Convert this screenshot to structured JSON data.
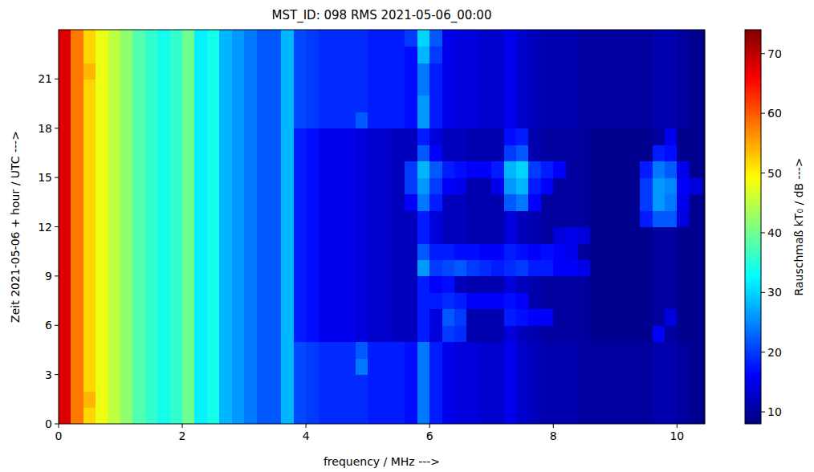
{
  "chart_data": {
    "type": "heatmap",
    "title": "MST_ID: 098 RMS 2021-05-06_00:00",
    "x_label": "frequency / MHz --->",
    "y_label": "Zeit 2021-05-06 + hour / UTC --->",
    "colorbar_label": "Rauschmaß kT₀ / dB --->",
    "xlim": [
      0,
      10.45
    ],
    "xticks": [
      0,
      2,
      4,
      6,
      8,
      10
    ],
    "ylim": [
      0,
      24
    ],
    "yticks": [
      0,
      3,
      6,
      9,
      12,
      15,
      18,
      21
    ],
    "colorbar_range": [
      8,
      74
    ],
    "colorbar_ticks": [
      10,
      20,
      30,
      40,
      50,
      60,
      70
    ],
    "x_edges": [
      0,
      0.2,
      0.4,
      0.6,
      0.8,
      1.0,
      1.2,
      1.4,
      1.6,
      1.8,
      2.0,
      2.2,
      2.4,
      2.6,
      2.8,
      3.0,
      3.2,
      3.4,
      3.6,
      3.8,
      4.0,
      4.2,
      4.4,
      4.6,
      4.8,
      5.0,
      5.2,
      5.4,
      5.6,
      5.8,
      6.0,
      6.2,
      6.4,
      6.6,
      6.8,
      7.0,
      7.2,
      7.4,
      7.6,
      7.8,
      8.0,
      8.2,
      8.4,
      8.6,
      8.8,
      9.0,
      9.2,
      9.4,
      9.6,
      9.8,
      10.0,
      10.2,
      10.4
    ],
    "y_edges": [
      0,
      1,
      2,
      3,
      4,
      5,
      6,
      7,
      8,
      9,
      10,
      11,
      12,
      13,
      14,
      15,
      16,
      17,
      18,
      19,
      20,
      21,
      22,
      23,
      24
    ],
    "cells": [
      [
        68,
        58,
        52,
        48,
        45,
        42,
        38,
        36,
        34,
        36,
        40,
        32,
        34,
        28,
        26,
        24,
        22,
        22,
        28,
        21,
        20,
        19,
        19,
        19,
        19,
        18,
        18,
        18,
        17,
        24,
        18,
        15,
        14,
        14,
        13,
        13,
        15,
        13,
        12,
        11,
        11,
        11,
        10,
        10,
        10,
        10,
        10,
        10,
        11,
        11,
        10,
        9
      ],
      [
        68,
        58,
        54,
        48,
        45,
        42,
        38,
        36,
        34,
        36,
        40,
        32,
        34,
        28,
        26,
        24,
        22,
        22,
        28,
        21,
        20,
        19,
        19,
        19,
        19,
        18,
        18,
        18,
        17,
        24,
        18,
        15,
        14,
        14,
        13,
        13,
        15,
        13,
        12,
        11,
        11,
        11,
        10,
        10,
        10,
        10,
        10,
        10,
        11,
        11,
        10,
        9
      ],
      [
        68,
        58,
        52,
        48,
        45,
        42,
        38,
        36,
        34,
        36,
        40,
        32,
        34,
        28,
        26,
        24,
        22,
        22,
        28,
        21,
        20,
        19,
        19,
        19,
        19,
        18,
        18,
        18,
        17,
        24,
        18,
        15,
        14,
        14,
        13,
        13,
        15,
        13,
        12,
        11,
        11,
        11,
        10,
        10,
        10,
        10,
        10,
        10,
        11,
        11,
        10,
        9
      ],
      [
        68,
        58,
        52,
        48,
        45,
        42,
        38,
        36,
        34,
        36,
        40,
        32,
        34,
        28,
        26,
        24,
        22,
        22,
        28,
        21,
        20,
        19,
        19,
        19,
        24,
        18,
        18,
        18,
        17,
        24,
        18,
        15,
        14,
        14,
        13,
        13,
        15,
        13,
        12,
        11,
        11,
        11,
        10,
        10,
        10,
        10,
        10,
        10,
        11,
        11,
        10,
        9
      ],
      [
        68,
        58,
        52,
        48,
        45,
        42,
        38,
        36,
        34,
        36,
        40,
        32,
        34,
        28,
        26,
        24,
        22,
        22,
        28,
        21,
        20,
        19,
        19,
        19,
        22,
        18,
        18,
        18,
        17,
        24,
        18,
        15,
        14,
        14,
        13,
        13,
        15,
        13,
        12,
        11,
        11,
        11,
        10,
        10,
        10,
        10,
        10,
        10,
        11,
        11,
        10,
        9
      ],
      [
        68,
        58,
        52,
        48,
        45,
        42,
        38,
        36,
        34,
        36,
        40,
        32,
        34,
        28,
        26,
        24,
        22,
        22,
        28,
        18,
        17,
        15,
        15,
        15,
        14,
        13,
        13,
        12,
        12,
        18,
        14,
        20,
        19,
        11,
        11,
        11,
        14,
        12,
        11,
        10,
        10,
        10,
        10,
        9,
        9,
        9,
        9,
        9,
        16,
        10,
        9,
        9
      ],
      [
        68,
        58,
        52,
        48,
        45,
        42,
        38,
        36,
        34,
        36,
        40,
        32,
        34,
        28,
        26,
        24,
        22,
        22,
        28,
        18,
        17,
        15,
        15,
        15,
        14,
        13,
        13,
        12,
        12,
        18,
        14,
        22,
        20,
        11,
        11,
        11,
        18,
        17,
        16,
        16,
        10,
        10,
        10,
        9,
        9,
        9,
        9,
        9,
        10,
        14,
        9,
        9
      ],
      [
        68,
        58,
        52,
        48,
        45,
        42,
        38,
        36,
        34,
        36,
        40,
        32,
        34,
        28,
        26,
        24,
        22,
        22,
        28,
        18,
        17,
        15,
        15,
        15,
        14,
        13,
        13,
        12,
        12,
        18,
        18,
        19,
        18,
        16,
        16,
        16,
        17,
        16,
        11,
        10,
        10,
        10,
        10,
        9,
        9,
        9,
        9,
        9,
        10,
        10,
        9,
        9
      ],
      [
        68,
        58,
        52,
        48,
        45,
        42,
        38,
        36,
        34,
        36,
        40,
        32,
        34,
        28,
        26,
        24,
        22,
        22,
        28,
        18,
        17,
        15,
        15,
        15,
        14,
        13,
        13,
        12,
        12,
        18,
        16,
        17,
        12,
        11,
        11,
        11,
        14,
        12,
        11,
        10,
        10,
        10,
        10,
        9,
        9,
        9,
        9,
        9,
        10,
        10,
        9,
        9
      ],
      [
        68,
        58,
        52,
        48,
        45,
        42,
        38,
        36,
        34,
        36,
        40,
        32,
        34,
        28,
        26,
        24,
        22,
        22,
        28,
        18,
        17,
        15,
        15,
        15,
        14,
        13,
        13,
        12,
        12,
        26,
        20,
        21,
        22,
        20,
        19,
        18,
        19,
        20,
        18,
        18,
        16,
        16,
        15,
        9,
        9,
        9,
        9,
        9,
        10,
        10,
        9,
        9
      ],
      [
        68,
        58,
        52,
        48,
        45,
        42,
        38,
        36,
        34,
        36,
        40,
        32,
        34,
        28,
        26,
        24,
        22,
        22,
        28,
        18,
        17,
        15,
        15,
        15,
        14,
        13,
        13,
        12,
        12,
        22,
        18,
        18,
        17,
        17,
        16,
        16,
        18,
        17,
        16,
        17,
        16,
        15,
        10,
        9,
        9,
        9,
        9,
        9,
        10,
        10,
        9,
        9
      ],
      [
        68,
        58,
        52,
        48,
        45,
        42,
        38,
        36,
        34,
        36,
        40,
        32,
        34,
        28,
        26,
        24,
        22,
        22,
        28,
        18,
        17,
        15,
        15,
        15,
        14,
        13,
        13,
        12,
        12,
        18,
        14,
        12,
        12,
        11,
        11,
        11,
        14,
        12,
        11,
        10,
        14,
        15,
        14,
        9,
        9,
        9,
        9,
        9,
        10,
        10,
        9,
        9
      ],
      [
        68,
        58,
        52,
        48,
        45,
        42,
        38,
        36,
        34,
        36,
        40,
        32,
        34,
        28,
        26,
        24,
        22,
        22,
        28,
        18,
        17,
        15,
        15,
        15,
        14,
        13,
        13,
        12,
        12,
        18,
        14,
        12,
        12,
        11,
        11,
        11,
        14,
        12,
        11,
        10,
        10,
        10,
        10,
        9,
        9,
        9,
        9,
        18,
        22,
        22,
        14,
        9
      ],
      [
        68,
        58,
        52,
        48,
        45,
        42,
        38,
        36,
        34,
        36,
        40,
        32,
        34,
        28,
        26,
        24,
        22,
        22,
        28,
        18,
        17,
        15,
        15,
        15,
        14,
        13,
        13,
        12,
        16,
        24,
        18,
        12,
        12,
        11,
        11,
        11,
        22,
        24,
        16,
        10,
        10,
        10,
        10,
        9,
        9,
        9,
        9,
        20,
        26,
        24,
        15,
        9
      ],
      [
        68,
        58,
        52,
        48,
        45,
        42,
        38,
        36,
        34,
        36,
        40,
        32,
        34,
        28,
        26,
        24,
        22,
        22,
        28,
        18,
        17,
        15,
        15,
        15,
        14,
        13,
        13,
        12,
        20,
        26,
        20,
        16,
        15,
        11,
        11,
        15,
        26,
        28,
        18,
        16,
        10,
        10,
        10,
        9,
        9,
        9,
        9,
        20,
        26,
        25,
        16,
        14
      ],
      [
        68,
        58,
        52,
        48,
        45,
        42,
        38,
        36,
        34,
        36,
        40,
        32,
        34,
        28,
        26,
        24,
        22,
        22,
        28,
        18,
        17,
        15,
        15,
        15,
        14,
        13,
        13,
        12,
        20,
        28,
        22,
        18,
        17,
        16,
        16,
        18,
        28,
        30,
        20,
        18,
        16,
        10,
        10,
        9,
        9,
        9,
        9,
        18,
        24,
        22,
        15,
        9
      ],
      [
        68,
        58,
        52,
        48,
        45,
        42,
        38,
        36,
        34,
        36,
        40,
        32,
        34,
        28,
        26,
        24,
        22,
        22,
        28,
        18,
        17,
        15,
        15,
        15,
        14,
        13,
        13,
        12,
        12,
        22,
        16,
        12,
        12,
        11,
        11,
        11,
        20,
        22,
        11,
        10,
        10,
        10,
        10,
        9,
        9,
        9,
        9,
        9,
        18,
        17,
        9,
        9
      ],
      [
        68,
        58,
        52,
        48,
        45,
        42,
        38,
        36,
        34,
        36,
        40,
        32,
        34,
        28,
        26,
        24,
        22,
        22,
        28,
        18,
        17,
        15,
        15,
        15,
        14,
        13,
        13,
        12,
        12,
        18,
        14,
        12,
        12,
        11,
        11,
        11,
        17,
        18,
        11,
        10,
        10,
        10,
        10,
        9,
        9,
        9,
        9,
        9,
        10,
        15,
        9,
        9
      ],
      [
        68,
        58,
        52,
        48,
        45,
        42,
        38,
        36,
        34,
        36,
        40,
        32,
        34,
        28,
        26,
        24,
        22,
        22,
        28,
        21,
        20,
        19,
        19,
        19,
        22,
        18,
        18,
        18,
        17,
        26,
        18,
        15,
        14,
        14,
        13,
        13,
        15,
        13,
        12,
        11,
        11,
        11,
        10,
        10,
        10,
        10,
        10,
        10,
        11,
        11,
        10,
        9
      ],
      [
        68,
        58,
        52,
        48,
        45,
        42,
        38,
        36,
        34,
        36,
        40,
        32,
        34,
        28,
        26,
        24,
        22,
        22,
        28,
        21,
        20,
        19,
        19,
        19,
        19,
        18,
        18,
        18,
        17,
        26,
        18,
        15,
        14,
        14,
        13,
        13,
        15,
        13,
        12,
        11,
        11,
        11,
        10,
        10,
        10,
        10,
        10,
        10,
        11,
        11,
        10,
        9
      ],
      [
        68,
        58,
        52,
        48,
        45,
        42,
        38,
        36,
        34,
        36,
        40,
        32,
        34,
        28,
        26,
        24,
        22,
        22,
        28,
        21,
        20,
        19,
        19,
        19,
        19,
        18,
        18,
        18,
        17,
        24,
        18,
        15,
        14,
        14,
        13,
        13,
        15,
        13,
        12,
        11,
        11,
        11,
        10,
        10,
        10,
        10,
        10,
        10,
        11,
        11,
        10,
        9
      ],
      [
        68,
        58,
        54,
        48,
        45,
        42,
        38,
        36,
        34,
        36,
        40,
        32,
        34,
        28,
        26,
        24,
        22,
        22,
        28,
        21,
        20,
        19,
        19,
        19,
        19,
        18,
        18,
        18,
        17,
        24,
        18,
        15,
        14,
        14,
        13,
        13,
        15,
        13,
        12,
        11,
        11,
        11,
        10,
        10,
        10,
        10,
        10,
        10,
        11,
        11,
        10,
        9
      ],
      [
        68,
        58,
        52,
        48,
        45,
        42,
        38,
        36,
        34,
        36,
        40,
        32,
        34,
        28,
        26,
        24,
        22,
        22,
        28,
        21,
        20,
        19,
        19,
        19,
        19,
        18,
        18,
        18,
        17,
        28,
        20,
        15,
        14,
        14,
        13,
        13,
        15,
        13,
        12,
        11,
        11,
        11,
        10,
        10,
        10,
        10,
        10,
        10,
        11,
        11,
        10,
        9
      ],
      [
        68,
        58,
        52,
        48,
        45,
        42,
        38,
        36,
        34,
        36,
        40,
        32,
        34,
        28,
        26,
        24,
        22,
        22,
        28,
        21,
        20,
        19,
        19,
        19,
        19,
        18,
        18,
        18,
        20,
        30,
        22,
        15,
        14,
        14,
        13,
        13,
        15,
        13,
        12,
        11,
        11,
        11,
        10,
        10,
        10,
        10,
        10,
        10,
        11,
        11,
        10,
        9
      ]
    ]
  }
}
